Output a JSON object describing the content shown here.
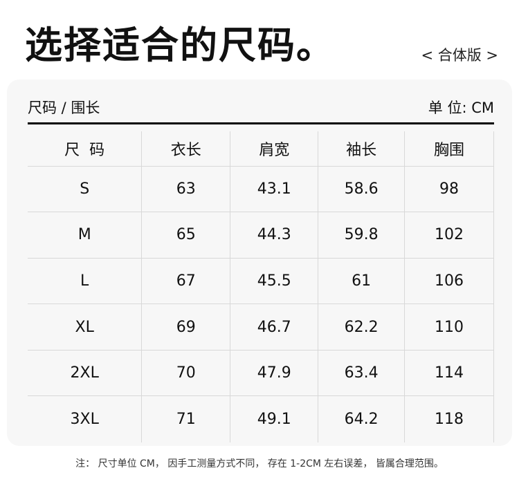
{
  "title": "选择适合的尺码。",
  "fit_label": "< 合体版 >",
  "table_label": "尺码 / 围长",
  "unit_label": "单 位: CM",
  "headers": [
    "尺  码",
    "衣长",
    "肩宽",
    "袖长",
    "胸围"
  ],
  "rows": [
    [
      "S",
      "63",
      "43.1",
      "58.6",
      "98"
    ],
    [
      "M",
      "65",
      "44.3",
      "59.8",
      "102"
    ],
    [
      "L",
      "67",
      "45.5",
      "61",
      "106"
    ],
    [
      "XL",
      "69",
      "46.7",
      "62.2",
      "110"
    ],
    [
      "2XL",
      "70",
      "47.9",
      "63.4",
      "114"
    ],
    [
      "3XL",
      "71",
      "49.1",
      "64.2",
      "118"
    ]
  ],
  "note": "注： 尺寸单位 CM， 因手工测量方式不同， 存在 1-2CM 左右误差， 皆属合理范围。"
}
